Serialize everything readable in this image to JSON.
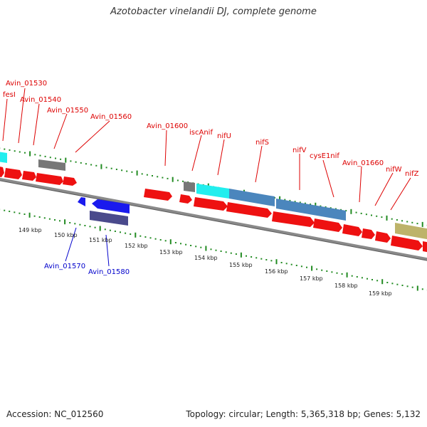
{
  "title": "Azotobacter vinelandii DJ, complete genome",
  "footer": {
    "accession": "Accession: NC_012560",
    "summary": "Topology: circular; Length: 5,365,318 bp; Genes: 5,132"
  },
  "colors": {
    "forward_gene_label": "#dd0000",
    "reverse_gene_label": "#0000cc",
    "cds_red": "#ee1111",
    "cds_blue": "#1a1aee",
    "cyan": "#22eeee",
    "steel_blue": "#4b86bd",
    "gray": "#777777",
    "olive": "#bdb36a",
    "navy": "#4a4a8c",
    "tick_green": "#228b22",
    "backbone": "#8a8a8a"
  },
  "axis": {
    "unit": "kbp",
    "tick_labels": [
      "149 kbp",
      "150 kbp",
      "151 kbp",
      "152 kbp",
      "153 kbp",
      "154 kbp",
      "155 kbp",
      "156 kbp",
      "157 kbp",
      "158 kbp",
      "159 kbp"
    ]
  },
  "forward_labels": [
    "Avin_01530",
    "fesI",
    "Avin_01540",
    "Avin_01550",
    "Avin_01560",
    "Avin_01600",
    "iscAnif",
    "nifU",
    "nifS",
    "nifV",
    "cysE1nif",
    "Avin_01660",
    "nifW",
    "nifZ"
  ],
  "reverse_labels": [
    "Avin_01570",
    "Avin_01580"
  ]
}
